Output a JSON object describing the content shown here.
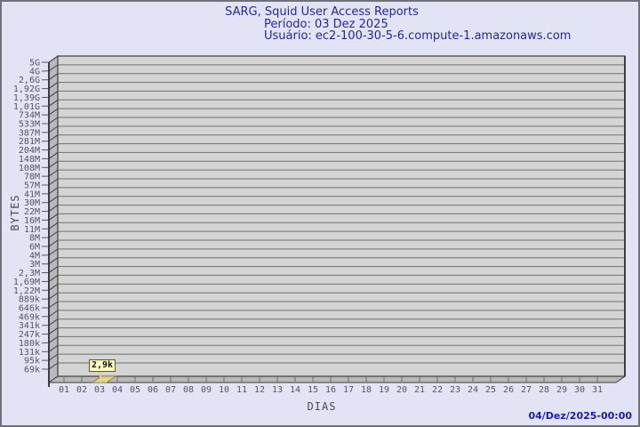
{
  "header": {
    "title": "SARG, Squid User Access Reports",
    "period_line": "Período: 03 Dez 2025",
    "user_line": "Usuário: ec2-100-30-5-6.compute-1.amazonaws.com"
  },
  "y_axis": {
    "label": "BYTES",
    "ticks": [
      "5G",
      "4G",
      "2,6G",
      "1,92G",
      "1,39G",
      "1,01G",
      "734M",
      "533M",
      "387M",
      "281M",
      "204M",
      "148M",
      "108M",
      "78M",
      "57M",
      "41M",
      "30M",
      "22M",
      "16M",
      "11M",
      "8M",
      "6M",
      "4M",
      "3M",
      "2,3M",
      "1,69M",
      "1,22M",
      "889k",
      "646k",
      "469k",
      "341k",
      "247k",
      "180k",
      "131k",
      "95k",
      "69k"
    ]
  },
  "x_axis": {
    "label": "DIAS",
    "ticks": [
      "01",
      "02",
      "03",
      "04",
      "05",
      "06",
      "07",
      "08",
      "09",
      "10",
      "11",
      "12",
      "13",
      "14",
      "15",
      "16",
      "17",
      "18",
      "19",
      "20",
      "21",
      "22",
      "23",
      "24",
      "25",
      "26",
      "27",
      "28",
      "29",
      "30",
      "31"
    ]
  },
  "bars": [
    {
      "day": "03",
      "label": "2,9k",
      "value_bytes": 2900
    }
  ],
  "footer": {
    "generated": "04/Dez/2025-00:00"
  },
  "colors": {
    "page_bg": "#e3e3f6",
    "page_border": "#70707c",
    "title_text": "#26269b",
    "face_fill": "#d4d4d4",
    "wall_fill": "#b9b9b9",
    "frame": "#3d3d3d",
    "grid": "#707070",
    "tick_text": "#55555f",
    "axis_label_text": "#4a4a52",
    "timestamp_text": "#1a1ab0",
    "bar_fill": "#e2d38b",
    "bar_stroke": "#8a7c3a",
    "callout_bg": "#ffffc4",
    "callout_border": "#5a5a20",
    "callout_text": "#111111"
  },
  "chart_data": {
    "type": "bar",
    "title": "SARG, Squid User Access Reports - Período: 03 Dez 2025 - Usuário: ec2-100-30-5-6.compute-1.amazonaws.com",
    "xlabel": "DIAS",
    "ylabel": "BYTES",
    "x": [
      1,
      2,
      3,
      4,
      5,
      6,
      7,
      8,
      9,
      10,
      11,
      12,
      13,
      14,
      15,
      16,
      17,
      18,
      19,
      20,
      21,
      22,
      23,
      24,
      25,
      26,
      27,
      28,
      29,
      30,
      31
    ],
    "values": [
      0,
      0,
      2900,
      0,
      0,
      0,
      0,
      0,
      0,
      0,
      0,
      0,
      0,
      0,
      0,
      0,
      0,
      0,
      0,
      0,
      0,
      0,
      0,
      0,
      0,
      0,
      0,
      0,
      0,
      0,
      0
    ],
    "value_labels": [
      "",
      "",
      "2,9k",
      "",
      "",
      "",
      "",
      "",
      "",
      "",
      "",
      "",
      "",
      "",
      "",
      "",
      "",
      "",
      "",
      "",
      "",
      "",
      "",
      "",
      "",
      "",
      "",
      "",
      "",
      "",
      ""
    ],
    "y_scale": "log",
    "y_tick_labels_top_to_bottom": [
      "5G",
      "4G",
      "2,6G",
      "1,92G",
      "1,39G",
      "1,01G",
      "734M",
      "533M",
      "387M",
      "281M",
      "204M",
      "148M",
      "108M",
      "78M",
      "57M",
      "41M",
      "30M",
      "22M",
      "16M",
      "11M",
      "8M",
      "6M",
      "4M",
      "3M",
      "2,3M",
      "1,69M",
      "1,22M",
      "889k",
      "646k",
      "469k",
      "341k",
      "247k",
      "180k",
      "131k",
      "95k",
      "69k"
    ],
    "grid": true,
    "legend": false,
    "annotations": [
      {
        "x": 3,
        "text": "2,9k"
      }
    ],
    "footer_timestamp": "04/Dez/2025-00:00"
  }
}
